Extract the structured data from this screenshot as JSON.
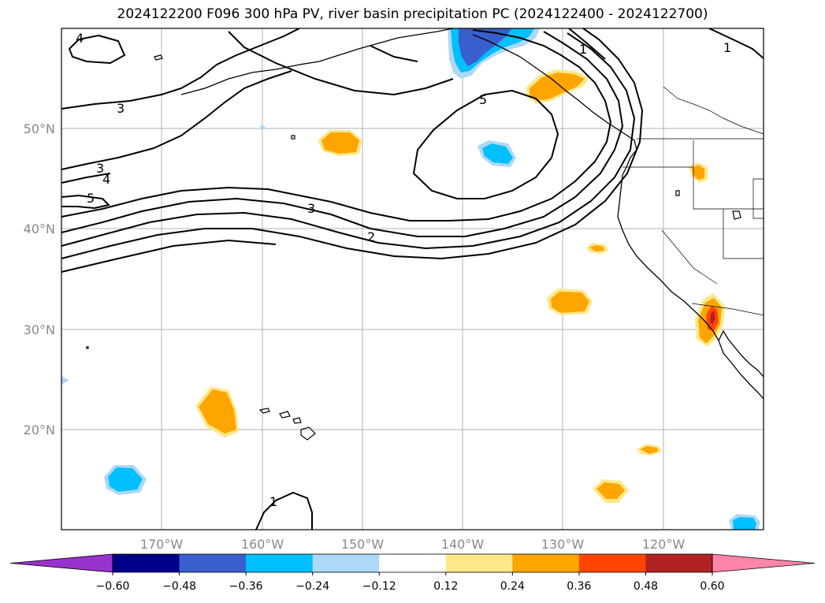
{
  "title": "2024122200 F096 300 hPa PV, river basin precipitation PC (2024122400 - 2024122700)",
  "latitude_labels": [
    "50°N",
    "40°N",
    "30°N",
    "20°N"
  ],
  "longitude_labels": [
    "170°W",
    "160°W",
    "150°W",
    "140°W",
    "130°W",
    "120°W"
  ],
  "contour_labels": [
    "4",
    "3",
    "3",
    "4",
    "5",
    "3",
    "2",
    "5",
    "1",
    "1",
    "1"
  ],
  "colorbar": {
    "tick_labels": [
      "−0.60",
      "−0.48",
      "−0.36",
      "−0.24",
      "−0.12",
      "0.12",
      "0.24",
      "0.36",
      "0.48",
      "0.60"
    ],
    "colors": [
      "#9932cc",
      "#00008b",
      "#3a5fcd",
      "#00bfff",
      "#add8f7",
      "#ffffff",
      "#ffe88a",
      "#ffa500",
      "#ff4500",
      "#b22222",
      "#ff85a8"
    ],
    "extend": "both"
  },
  "colors": {
    "grid": "#b0b0b0",
    "coast": "#000000",
    "contour": "#000000",
    "label_gray": "#888888"
  }
}
